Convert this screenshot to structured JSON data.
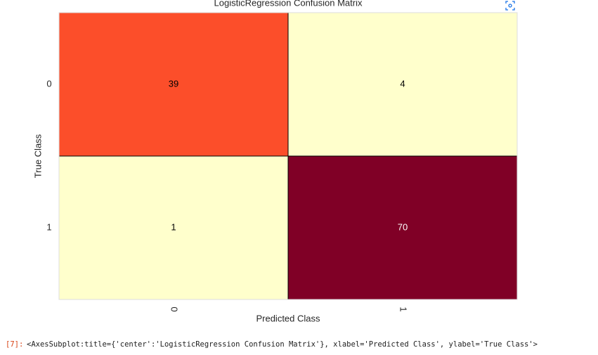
{
  "chart_data": {
    "type": "heatmap",
    "title": "LogisticRegression Confusion Matrix",
    "x_label": "Predicted Class",
    "y_label": "True Class",
    "x_categories": [
      "0",
      "1"
    ],
    "y_categories": [
      "0",
      "1"
    ],
    "values": [
      [
        39,
        4
      ],
      [
        1,
        70
      ]
    ],
    "colors": [
      [
        "#fc4e2a",
        "#ffffcc"
      ],
      [
        "#ffffcc",
        "#800026"
      ]
    ],
    "text_colors": [
      [
        "#000000",
        "#000000"
      ],
      [
        "#000000",
        "#ffffff"
      ]
    ]
  },
  "output": {
    "prompt": "[7]:",
    "text": "<AxesSubplot:title={'center':'LogisticRegression Confusion Matrix'}, xlabel='Predicted Class', ylabel='True Class'>"
  }
}
